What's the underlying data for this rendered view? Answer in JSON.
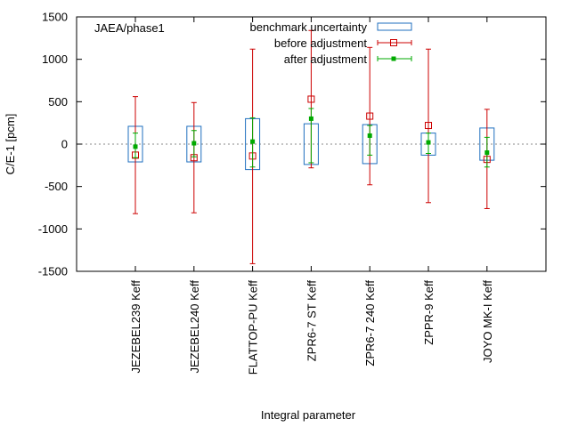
{
  "chart_data": {
    "type": "scatter",
    "title": "",
    "annotation": "JAEA/phase1",
    "xlabel": "Integral parameter",
    "ylabel": "C/E-1 [pcm]",
    "ylim": [
      -1500,
      1500
    ],
    "yticks": [
      -1500,
      -1000,
      -500,
      0,
      500,
      1000,
      1500
    ],
    "zero_line": true,
    "grid": false,
    "legend_position": "top-right",
    "categories": [
      "JEZEBEL239 Keff",
      "JEZEBEL240 Keff",
      "FLATTOP-PU Keff",
      "ZPR6-7 ST Keff",
      "ZPR6-7 240 Keff",
      "ZPPR-9 Keff",
      "JOYO MK-I Keff"
    ],
    "series": [
      {
        "name": "benchmark uncertainty",
        "kind": "box",
        "color": "#1f6fbf",
        "values": [
          210,
          210,
          300,
          240,
          230,
          130,
          190
        ]
      },
      {
        "name": "before adjustment",
        "kind": "errorbar",
        "color": "#cc0000",
        "marker": "open-square",
        "values": [
          -130,
          -160,
          -140,
          530,
          330,
          220,
          -180
        ],
        "low": [
          -820,
          -810,
          -1410,
          -280,
          -480,
          -690,
          -760
        ],
        "high": [
          560,
          490,
          1120,
          1340,
          1140,
          1120,
          410
        ]
      },
      {
        "name": "after adjustment",
        "kind": "errorbar",
        "color": "#00aa00",
        "marker": "filled-square",
        "values": [
          -30,
          10,
          30,
          300,
          100,
          20,
          -100
        ],
        "low": [
          -160,
          -150,
          -270,
          -220,
          -130,
          -110,
          -270
        ],
        "high": [
          130,
          160,
          310,
          420,
          220,
          130,
          80
        ]
      }
    ]
  }
}
